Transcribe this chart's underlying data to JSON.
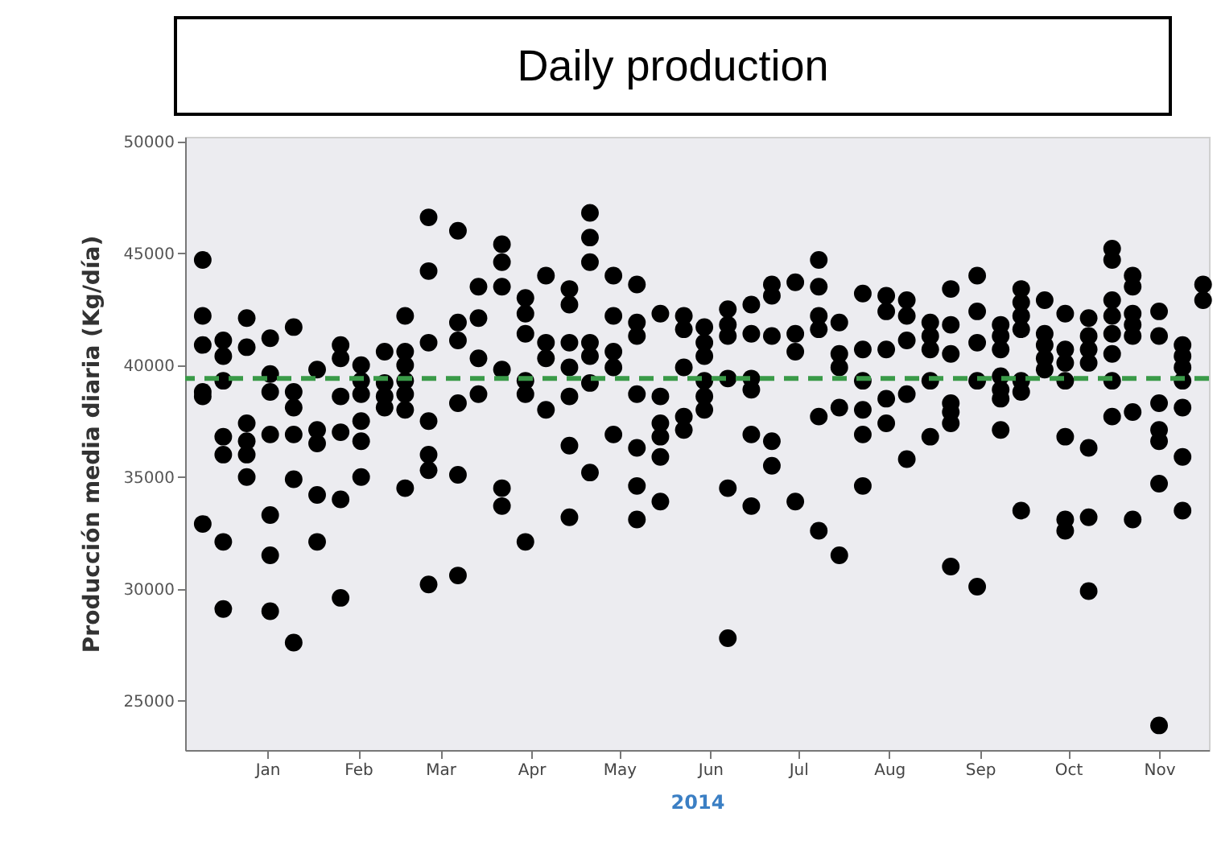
{
  "chart_data": {
    "type": "scatter",
    "title": "Daily production",
    "xlabel": "2014",
    "ylabel": "Producción media diaria (Kg/día)",
    "x": [
      "2013-12-10",
      "2013-12-10",
      "2013-12-10",
      "2013-12-10",
      "2013-12-10",
      "2013-12-10",
      "2013-12-17",
      "2013-12-17",
      "2013-12-17",
      "2013-12-17",
      "2013-12-17",
      "2013-12-17",
      "2013-12-17",
      "2013-12-25",
      "2013-12-25",
      "2013-12-25",
      "2013-12-25",
      "2013-12-25",
      "2013-12-25",
      "2014-01-02",
      "2014-01-02",
      "2014-01-02",
      "2014-01-02",
      "2014-01-02",
      "2014-01-02",
      "2014-01-02",
      "2014-01-10",
      "2014-01-10",
      "2014-01-10",
      "2014-01-10",
      "2014-01-10",
      "2014-01-10",
      "2014-01-18",
      "2014-01-18",
      "2014-01-18",
      "2014-01-18",
      "2014-01-18",
      "2014-01-26",
      "2014-01-26",
      "2014-01-26",
      "2014-01-26",
      "2014-01-26",
      "2014-01-26",
      "2014-02-02",
      "2014-02-02",
      "2014-02-02",
      "2014-02-02",
      "2014-02-02",
      "2014-02-02",
      "2014-02-10",
      "2014-02-10",
      "2014-02-10",
      "2014-02-10",
      "2014-02-17",
      "2014-02-17",
      "2014-02-17",
      "2014-02-17",
      "2014-02-17",
      "2014-02-17",
      "2014-02-17",
      "2014-02-25",
      "2014-02-25",
      "2014-02-25",
      "2014-02-25",
      "2014-02-25",
      "2014-02-25",
      "2014-02-25",
      "2014-03-07",
      "2014-03-07",
      "2014-03-07",
      "2014-03-07",
      "2014-03-07",
      "2014-03-07",
      "2014-03-14",
      "2014-03-14",
      "2014-03-14",
      "2014-03-14",
      "2014-03-22",
      "2014-03-22",
      "2014-03-22",
      "2014-03-22",
      "2014-03-22",
      "2014-03-22",
      "2014-03-30",
      "2014-03-30",
      "2014-03-30",
      "2014-03-30",
      "2014-03-30",
      "2014-03-30",
      "2014-04-06",
      "2014-04-06",
      "2014-04-06",
      "2014-04-06",
      "2014-04-14",
      "2014-04-14",
      "2014-04-14",
      "2014-04-14",
      "2014-04-14",
      "2014-04-14",
      "2014-04-14",
      "2014-04-21",
      "2014-04-21",
      "2014-04-21",
      "2014-04-21",
      "2014-04-21",
      "2014-04-21",
      "2014-04-21",
      "2014-04-29",
      "2014-04-29",
      "2014-04-29",
      "2014-04-29",
      "2014-04-29",
      "2014-05-07",
      "2014-05-07",
      "2014-05-07",
      "2014-05-07",
      "2014-05-07",
      "2014-05-07",
      "2014-05-07",
      "2014-05-15",
      "2014-05-15",
      "2014-05-15",
      "2014-05-15",
      "2014-05-15",
      "2014-05-15",
      "2014-05-23",
      "2014-05-23",
      "2014-05-23",
      "2014-05-23",
      "2014-05-23",
      "2014-05-30",
      "2014-05-30",
      "2014-05-30",
      "2014-05-30",
      "2014-05-30",
      "2014-05-30",
      "2014-06-07",
      "2014-06-07",
      "2014-06-07",
      "2014-06-07",
      "2014-06-07",
      "2014-06-07",
      "2014-06-15",
      "2014-06-15",
      "2014-06-15",
      "2014-06-15",
      "2014-06-15",
      "2014-06-15",
      "2014-06-22",
      "2014-06-22",
      "2014-06-22",
      "2014-06-22",
      "2014-06-22",
      "2014-06-30",
      "2014-06-30",
      "2014-06-30",
      "2014-06-30",
      "2014-07-08",
      "2014-07-08",
      "2014-07-08",
      "2014-07-08",
      "2014-07-08",
      "2014-07-08",
      "2014-07-15",
      "2014-07-15",
      "2014-07-15",
      "2014-07-15",
      "2014-07-15",
      "2014-07-23",
      "2014-07-23",
      "2014-07-23",
      "2014-07-23",
      "2014-07-23",
      "2014-07-23",
      "2014-07-31",
      "2014-07-31",
      "2014-07-31",
      "2014-07-31",
      "2014-07-31",
      "2014-08-07",
      "2014-08-07",
      "2014-08-07",
      "2014-08-07",
      "2014-08-07",
      "2014-08-15",
      "2014-08-15",
      "2014-08-15",
      "2014-08-15",
      "2014-08-15",
      "2014-08-22",
      "2014-08-22",
      "2014-08-22",
      "2014-08-22",
      "2014-08-22",
      "2014-08-22",
      "2014-08-22",
      "2014-08-31",
      "2014-08-31",
      "2014-08-31",
      "2014-08-31",
      "2014-08-31",
      "2014-09-08",
      "2014-09-08",
      "2014-09-08",
      "2014-09-08",
      "2014-09-08",
      "2014-09-08",
      "2014-09-08",
      "2014-09-15",
      "2014-09-15",
      "2014-09-15",
      "2014-09-15",
      "2014-09-15",
      "2014-09-15",
      "2014-09-15",
      "2014-09-23",
      "2014-09-23",
      "2014-09-23",
      "2014-09-23",
      "2014-09-23",
      "2014-09-30",
      "2014-09-30",
      "2014-09-30",
      "2014-09-30",
      "2014-09-30",
      "2014-09-30",
      "2014-09-30",
      "2014-10-08",
      "2014-10-08",
      "2014-10-08",
      "2014-10-08",
      "2014-10-08",
      "2014-10-08",
      "2014-10-08",
      "2014-10-16",
      "2014-10-16",
      "2014-10-16",
      "2014-10-16",
      "2014-10-16",
      "2014-10-16",
      "2014-10-16",
      "2014-10-16",
      "2014-10-23",
      "2014-10-23",
      "2014-10-23",
      "2014-10-23",
      "2014-10-23",
      "2014-10-23",
      "2014-10-23",
      "2014-11-01",
      "2014-11-01",
      "2014-11-01",
      "2014-11-01",
      "2014-11-01",
      "2014-11-01",
      "2014-11-01",
      "2014-11-09",
      "2014-11-09",
      "2014-11-09",
      "2014-11-09",
      "2014-11-09",
      "2014-11-09",
      "2014-11-09",
      "2014-11-16",
      "2014-11-16"
    ],
    "values": [
      44700,
      42200,
      40900,
      38800,
      38600,
      32900,
      41100,
      40400,
      39300,
      36800,
      36000,
      32100,
      29100,
      42100,
      40800,
      37400,
      36600,
      36000,
      35000,
      41200,
      39600,
      38800,
      36900,
      33300,
      31500,
      29000,
      41700,
      38800,
      38100,
      36900,
      34900,
      27600,
      39800,
      37100,
      36500,
      34200,
      32100,
      40900,
      40300,
      38600,
      37000,
      34000,
      29600,
      40000,
      39300,
      38700,
      37500,
      36600,
      35000,
      40600,
      39200,
      38600,
      38100,
      42200,
      40600,
      40000,
      39300,
      38700,
      38000,
      34500,
      46600,
      44200,
      41000,
      37500,
      36000,
      35300,
      30200,
      46000,
      41900,
      41100,
      38300,
      35100,
      30600,
      43500,
      42100,
      40300,
      38700,
      45400,
      44600,
      43500,
      39800,
      34500,
      33700,
      43000,
      42300,
      41400,
      39300,
      38700,
      32100,
      44000,
      41000,
      40300,
      38000,
      43400,
      42700,
      41000,
      39900,
      38600,
      36400,
      33200,
      46800,
      45700,
      44600,
      41000,
      40400,
      39200,
      35200,
      44000,
      42200,
      40600,
      39900,
      36900,
      43600,
      41900,
      41300,
      38700,
      36300,
      34600,
      33100,
      42300,
      38600,
      37400,
      36800,
      35900,
      33900,
      42200,
      41600,
      39900,
      37700,
      37100,
      41700,
      41000,
      40400,
      39300,
      38600,
      38000,
      42500,
      41800,
      41300,
      39400,
      34500,
      27800,
      42700,
      41400,
      39400,
      38900,
      36900,
      33700,
      43600,
      43100,
      41300,
      36600,
      35500,
      43700,
      41400,
      40600,
      33900,
      44700,
      43500,
      42200,
      41600,
      37700,
      32600,
      41900,
      40500,
      39900,
      38100,
      31500,
      43200,
      40700,
      39300,
      38000,
      36900,
      34600,
      43100,
      42400,
      40700,
      38500,
      37400,
      42900,
      42200,
      41100,
      38700,
      35800,
      41900,
      41300,
      40700,
      39300,
      36800,
      43400,
      41800,
      40500,
      38300,
      37900,
      37400,
      31000,
      44000,
      42400,
      41000,
      39300,
      30100,
      41800,
      41300,
      40700,
      39500,
      38900,
      38500,
      37100,
      43400,
      42800,
      42200,
      41600,
      39300,
      38800,
      33500,
      42900,
      41400,
      40900,
      40300,
      39800,
      42300,
      40700,
      40100,
      39300,
      36800,
      33100,
      32600,
      42100,
      41300,
      40700,
      40100,
      36300,
      33200,
      29900,
      45200,
      44700,
      42900,
      42200,
      41400,
      40500,
      39300,
      37700,
      44000,
      43500,
      42300,
      41800,
      41300,
      37900,
      33100,
      42400,
      41300,
      38300,
      37100,
      36600,
      34700,
      23900,
      40900,
      40400,
      39900,
      39300,
      38100,
      35900,
      33500,
      43600,
      42900
    ],
    "color": "#000000",
    "marker": "circle",
    "xlim": [
      "2013-12-04",
      "2014-11-18"
    ],
    "xticks": [
      {
        "value": "2014-01-01",
        "label": "Jan"
      },
      {
        "value": "2014-02-01",
        "label": "Feb"
      },
      {
        "value": "2014-03-01",
        "label": "Mar"
      },
      {
        "value": "2014-04-01",
        "label": "Apr"
      },
      {
        "value": "2014-05-01",
        "label": "May"
      },
      {
        "value": "2014-06-01",
        "label": "Jun"
      },
      {
        "value": "2014-07-01",
        "label": "Jul"
      },
      {
        "value": "2014-08-01",
        "label": "Aug"
      },
      {
        "value": "2014-09-01",
        "label": "Sep"
      },
      {
        "value": "2014-10-01",
        "label": "Oct"
      },
      {
        "value": "2014-11-01",
        "label": "Nov"
      }
    ],
    "ylim": [
      22800,
      50200
    ],
    "yticks": [
      25000,
      30000,
      35000,
      40000,
      45000,
      50000
    ],
    "ref_lines": [
      {
        "axis": "y",
        "value": 39400,
        "color": "#3a9a48",
        "line_style": "dashed"
      }
    ],
    "grid": false
  }
}
